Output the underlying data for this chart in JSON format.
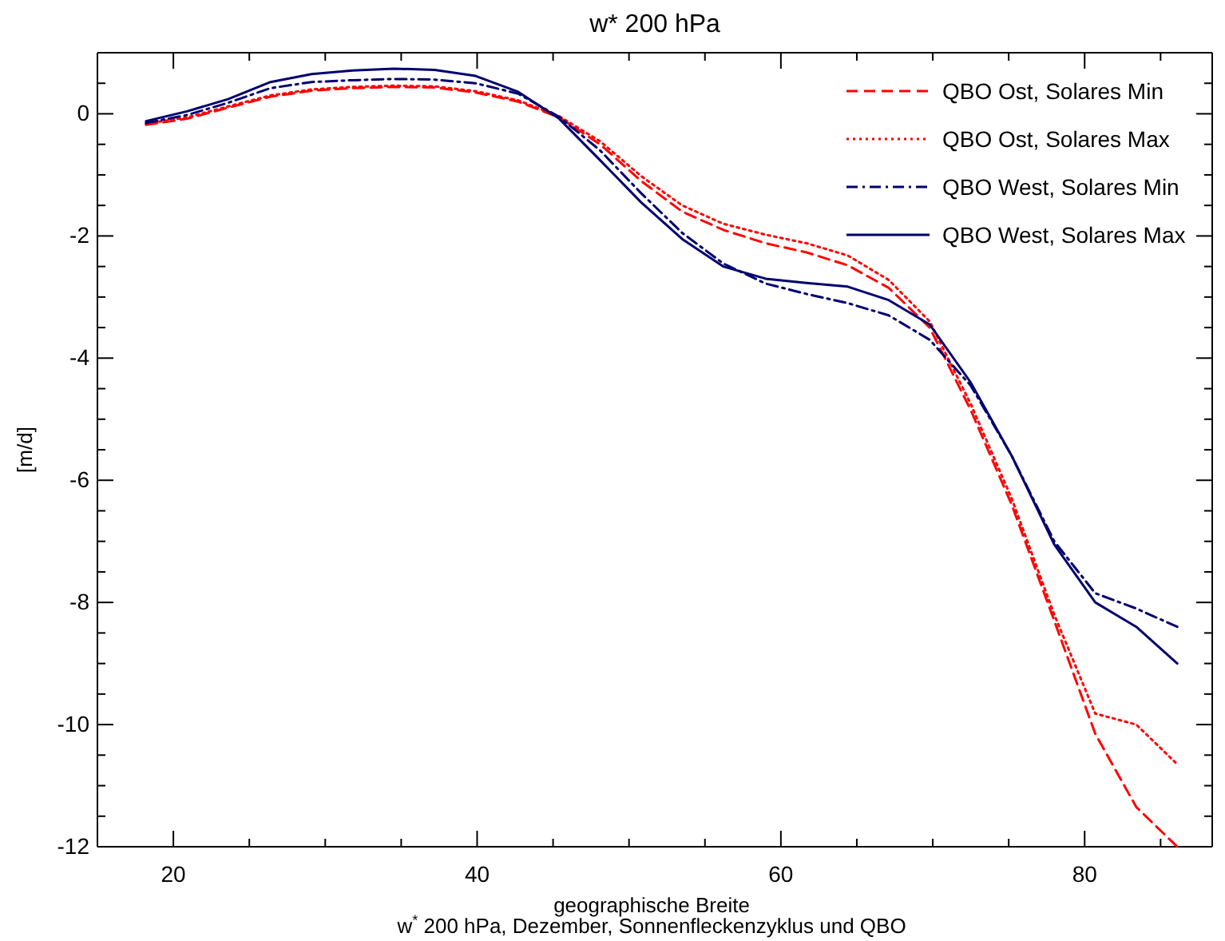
{
  "chart_data": {
    "type": "line",
    "title": "w* 200 hPa",
    "xlabel": "geographische Breite",
    "ylabel": "[m/d]",
    "annotations": [
      "w$^{*}$ 200 hPa, Dezember, Sonnenfleckenzyklus und QBO"
    ],
    "x": [
      18.2,
      20.9,
      23.6,
      26.4,
      29.1,
      31.8,
      34.5,
      37.2,
      39.9,
      42.7,
      45.4,
      48.1,
      50.8,
      53.5,
      56.2,
      59.0,
      61.7,
      64.4,
      67.1,
      69.8,
      72.5,
      75.2,
      78.0,
      80.7,
      83.4,
      86.1
    ],
    "xlim": [
      15,
      88.4
    ],
    "xticks": [
      20,
      {
        "value": 25,
        "label": null
      },
      {
        "value": 30,
        "label": null
      },
      {
        "value": 35,
        "label": null
      },
      40,
      {
        "value": 45,
        "label": null
      },
      {
        "value": 50,
        "label": null
      },
      {
        "value": 55,
        "label": null
      },
      60,
      {
        "value": 65,
        "label": null
      },
      {
        "value": 70,
        "label": null
      },
      {
        "value": 75,
        "label": null
      },
      80,
      {
        "value": 85,
        "label": null
      }
    ],
    "ylim": [
      -12,
      1
    ],
    "yticks": [
      -12,
      {
        "value": -11.5,
        "label": null
      },
      {
        "value": -11,
        "label": null
      },
      {
        "value": -10.5,
        "label": null
      },
      -10,
      {
        "value": -9.5,
        "label": null
      },
      {
        "value": -9,
        "label": null
      },
      {
        "value": -8.5,
        "label": null
      },
      -8,
      {
        "value": -7.5,
        "label": null
      },
      {
        "value": -7,
        "label": null
      },
      {
        "value": -6.5,
        "label": null
      },
      -6,
      {
        "value": -5.5,
        "label": null
      },
      {
        "value": -5,
        "label": null
      },
      {
        "value": -4.5,
        "label": null
      },
      -4,
      {
        "value": -3.5,
        "label": null
      },
      {
        "value": -3,
        "label": null
      },
      {
        "value": -2.5,
        "label": null
      },
      -2,
      {
        "value": -1.5,
        "label": null
      },
      {
        "value": -1,
        "label": null
      },
      {
        "value": -0.5,
        "label": null
      },
      0,
      {
        "value": 0.5,
        "label": null
      }
    ],
    "grid": false,
    "legend": "top right",
    "marker": "none",
    "series": [
      {
        "name": "QBO Ost, Solares Min",
        "color": "#ff0000",
        "line_style": "dashed",
        "values": [
          -0.18,
          -0.08,
          0.1,
          0.28,
          0.38,
          0.42,
          0.44,
          0.43,
          0.35,
          0.2,
          -0.06,
          -0.5,
          -1.1,
          -1.6,
          -1.9,
          -2.12,
          -2.27,
          -2.48,
          -2.85,
          -3.5,
          -4.85,
          -6.4,
          -8.3,
          -10.15,
          -11.35,
          -12.0
        ]
      },
      {
        "name": "QBO Ost, Solares Max",
        "color": "#ff0000",
        "line_style": "dotted",
        "values": [
          -0.16,
          -0.06,
          0.12,
          0.3,
          0.4,
          0.44,
          0.46,
          0.45,
          0.37,
          0.22,
          -0.04,
          -0.45,
          -1.02,
          -1.5,
          -1.8,
          -1.98,
          -2.12,
          -2.32,
          -2.72,
          -3.4,
          -4.75,
          -6.3,
          -8.2,
          -9.82,
          -10.0,
          -10.65
        ]
      },
      {
        "name": "QBO West, Solares Min",
        "color": "#000070",
        "line_style": "dashdot",
        "values": [
          -0.15,
          -0.02,
          0.18,
          0.42,
          0.52,
          0.55,
          0.57,
          0.56,
          0.5,
          0.33,
          -0.05,
          -0.6,
          -1.3,
          -1.95,
          -2.45,
          -2.78,
          -2.95,
          -3.1,
          -3.3,
          -3.7,
          -4.45,
          -5.6,
          -7.0,
          -7.85,
          -8.1,
          -8.4
        ]
      },
      {
        "name": "QBO West, Solares Max",
        "color": "#000070",
        "line_style": "solid",
        "values": [
          -0.12,
          0.04,
          0.24,
          0.52,
          0.65,
          0.71,
          0.74,
          0.72,
          0.62,
          0.36,
          -0.08,
          -0.76,
          -1.45,
          -2.05,
          -2.5,
          -2.7,
          -2.77,
          -2.83,
          -3.05,
          -3.45,
          -4.4,
          -5.6,
          -7.05,
          -8.0,
          -8.4,
          -9.0
        ]
      }
    ]
  }
}
